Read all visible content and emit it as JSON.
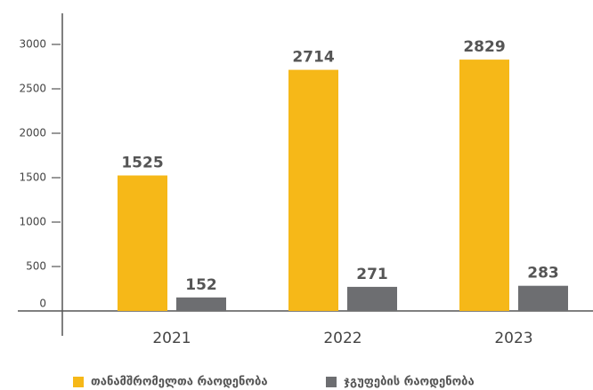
{
  "chart_data": {
    "type": "bar",
    "categories": [
      "2021",
      "2022",
      "2023"
    ],
    "series": [
      {
        "name": "თანამშრომელთა რაოდენობა",
        "color": "#f6b818",
        "values": [
          1525,
          2714,
          2829
        ]
      },
      {
        "name": "ჯგუფების რაოდენობა",
        "color": "#6d6e71",
        "values": [
          152,
          271,
          283
        ]
      }
    ],
    "ylim": [
      0,
      3350
    ],
    "yticks": [
      0,
      500,
      1000,
      1500,
      2000,
      2500,
      3000
    ],
    "legend": "bottom"
  }
}
